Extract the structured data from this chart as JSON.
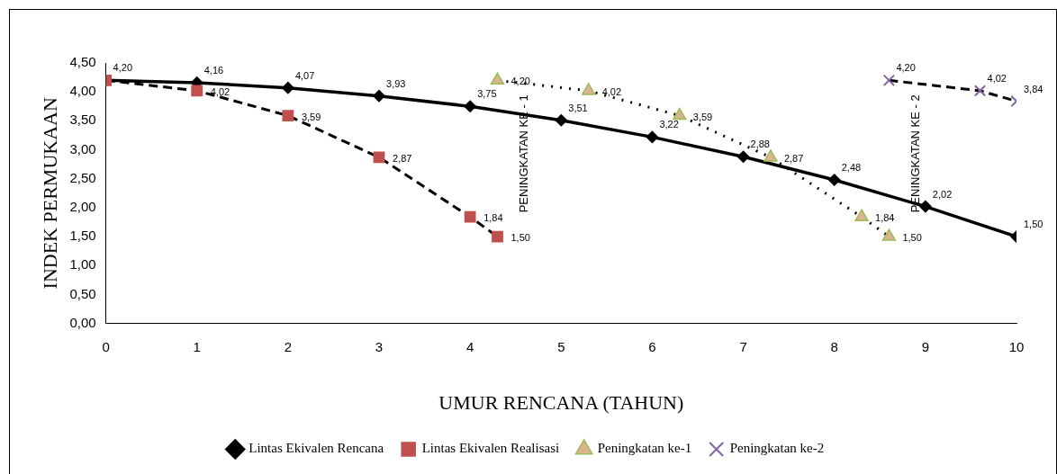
{
  "chart_data": {
    "type": "line",
    "xlabel": "UMUR RENCANA (TAHUN)",
    "ylabel": "INDEK PERMUKAAN",
    "xlim": [
      0,
      10
    ],
    "xticks": [
      0,
      1,
      2,
      3,
      4,
      5,
      6,
      7,
      8,
      9,
      10
    ],
    "ylim": [
      0,
      4.5
    ],
    "yticks": [
      {
        "value": 0,
        "label": "0,00"
      },
      {
        "value": 0.5,
        "label": "0,50"
      },
      {
        "value": 1,
        "label": "1,00"
      },
      {
        "value": 1.5,
        "label": "1,50"
      },
      {
        "value": 2,
        "label": "2,00"
      },
      {
        "value": 2.5,
        "label": "2,50"
      },
      {
        "value": 3,
        "label": "3,00"
      },
      {
        "value": 3.5,
        "label": "3,50"
      },
      {
        "value": 4,
        "label": "4,00"
      },
      {
        "value": 4.5,
        "label": "4,50"
      }
    ],
    "grid": false,
    "legend": "bottom",
    "annotations": [
      "PENINGKATAN KE - 1",
      "PENINGKATAN KE - 2"
    ],
    "series": [
      {
        "name": "Lintas Ekivalen Rencana",
        "color": "#000000",
        "marker": "diamond",
        "line_style": "solid",
        "x": [
          0,
          1,
          2,
          3,
          4,
          5,
          6,
          7,
          8,
          9,
          10
        ],
        "values": [
          4.2,
          4.16,
          4.07,
          3.93,
          3.75,
          3.51,
          3.22,
          2.88,
          2.48,
          2.02,
          1.5
        ],
        "value_labels": [
          "4,20",
          "4,16",
          "4,07",
          "3,93",
          "3,75",
          "3,51",
          "3,22",
          "2,88",
          "2,48",
          "2,02",
          "1,50"
        ]
      },
      {
        "name": "Lintas Ekivalen Realisasi",
        "color": "#c0504d",
        "marker": "square",
        "line_style": "dashed",
        "x": [
          0,
          1,
          2,
          3,
          4,
          4.3
        ],
        "values": [
          4.2,
          4.02,
          3.59,
          2.87,
          1.84,
          1.5
        ],
        "value_labels": [
          null,
          "4,02",
          "3,59",
          "2,87",
          "1,84",
          "1,50"
        ]
      },
      {
        "name": "Peningkatan ke-1",
        "color": "#9bbb59",
        "marker": "triangle",
        "line_style": "dotted",
        "x": [
          4.3,
          5.3,
          6.3,
          7.3,
          8.3,
          8.6
        ],
        "values": [
          4.2,
          4.02,
          3.59,
          2.87,
          1.84,
          1.5
        ],
        "value_labels": [
          "4,20",
          "4,02",
          "3,59",
          "2,87",
          "1,84",
          "1,50"
        ]
      },
      {
        "name": "Peningkatan ke-2",
        "color": "#8064a2",
        "marker": "cross",
        "line_style": "dashed",
        "x": [
          8.6,
          9.6,
          10
        ],
        "values": [
          4.2,
          4.02,
          3.84
        ],
        "value_labels": [
          "4,20",
          "4,02",
          "3,84"
        ]
      }
    ]
  }
}
